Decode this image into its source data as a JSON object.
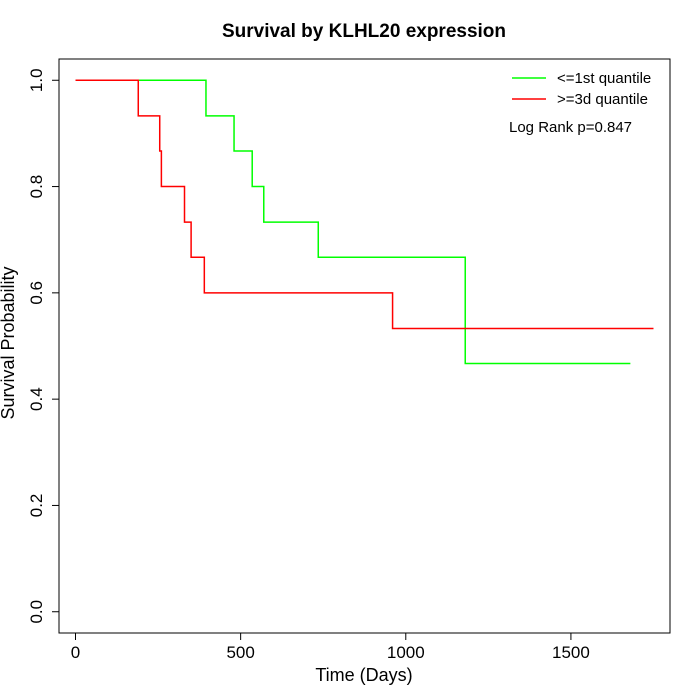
{
  "chart_data": {
    "type": "line",
    "title": "Survival by KLHL20 expression",
    "xlabel": "Time (Days)",
    "ylabel": "Survival Probability",
    "xlim": [
      -50,
      1800
    ],
    "ylim": [
      -0.04,
      1.04
    ],
    "x_ticks": [
      0,
      500,
      1000,
      1500
    ],
    "x_tick_labels": [
      "0",
      "500",
      "1000",
      "1500"
    ],
    "y_ticks": [
      0.0,
      0.2,
      0.4,
      0.6,
      0.8,
      1.0
    ],
    "y_tick_labels": [
      "0.0",
      "0.2",
      "0.4",
      "0.6",
      "0.8",
      "1.0"
    ],
    "grid": false,
    "legend_position": "top-right",
    "annotation": "Log Rank p=0.847",
    "series": [
      {
        "name": "<=1st quantile",
        "color": "#00ff00",
        "x": [
          0,
          395,
          480,
          535,
          570,
          735,
          1180,
          1680
        ],
        "y": [
          1.0,
          0.933,
          0.867,
          0.8,
          0.733,
          0.667,
          0.467,
          0.467
        ]
      },
      {
        "name": ">=3d quantile",
        "color": "#ff0000",
        "x": [
          0,
          190,
          255,
          260,
          330,
          350,
          390,
          960,
          1750
        ],
        "y": [
          1.0,
          0.933,
          0.867,
          0.8,
          0.733,
          0.667,
          0.6,
          0.533,
          0.533
        ]
      }
    ]
  }
}
